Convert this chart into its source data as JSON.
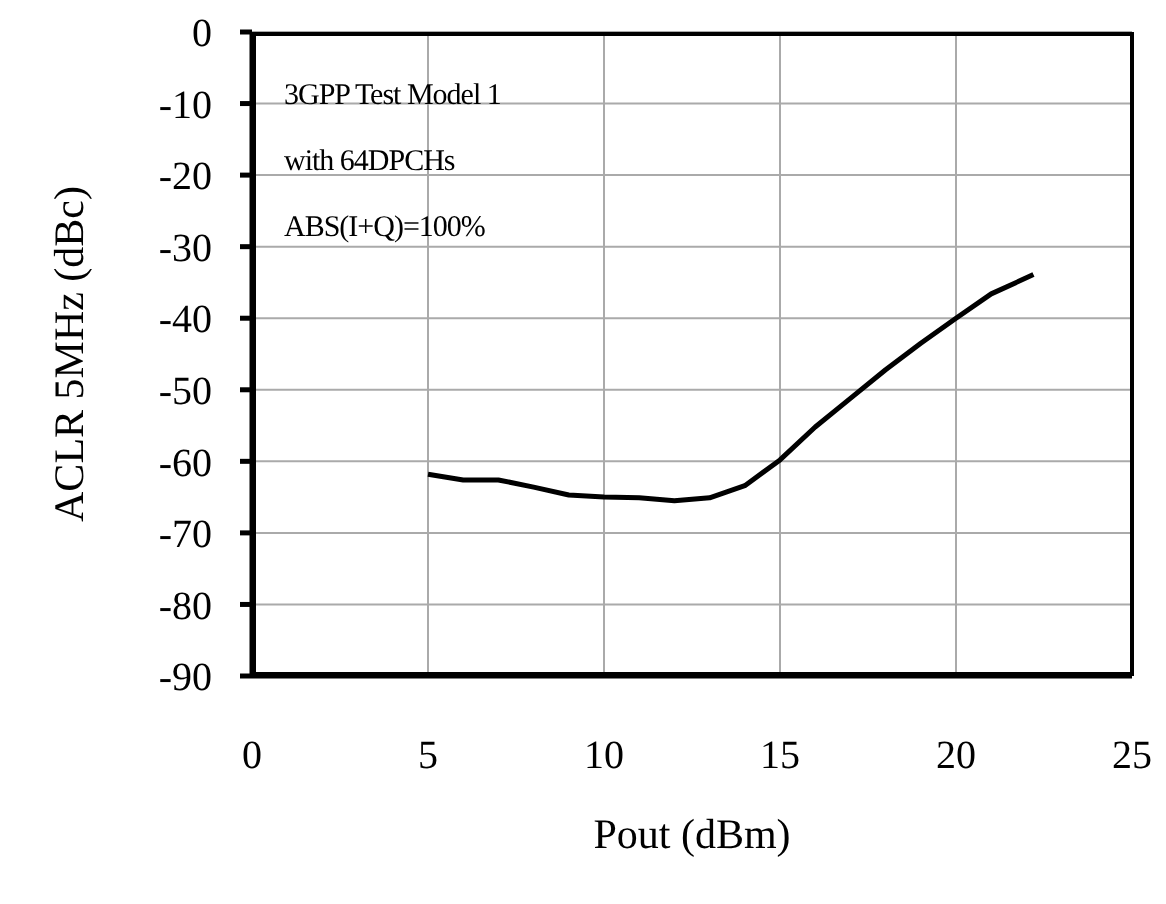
{
  "chart_data": {
    "type": "line",
    "xlabel": "Pout (dBm)",
    "ylabel": "ACLR 5MHz (dBc)",
    "annotations": [
      "3GPP Test Model 1",
      "with 64DPCHs",
      "ABS(I+Q)=100%"
    ],
    "series": [
      {
        "color": "#000000",
        "x": [
          5,
          6,
          7,
          8,
          9,
          10,
          11,
          12,
          13,
          14,
          15,
          16,
          17,
          18,
          19,
          20,
          21,
          22.2
        ],
        "values": [
          -61.8,
          -62.6,
          -62.6,
          -63.6,
          -64.7,
          -65,
          -65.1,
          -65.5,
          -65.1,
          -63.4,
          -59.8,
          -55.2,
          -51.2,
          -47.2,
          -43.5,
          -40,
          -36.6,
          -33.9
        ]
      }
    ],
    "xlim": [
      0,
      25
    ],
    "xticks": [
      0,
      5,
      10,
      15,
      20,
      25
    ],
    "ylim": [
      -90,
      0
    ],
    "yticks": [
      -90,
      -80,
      -70,
      -60,
      -50,
      -40,
      -30,
      -20,
      -10,
      0
    ],
    "grid": true,
    "marker": "none",
    "line_style": "solid",
    "legend": false
  }
}
